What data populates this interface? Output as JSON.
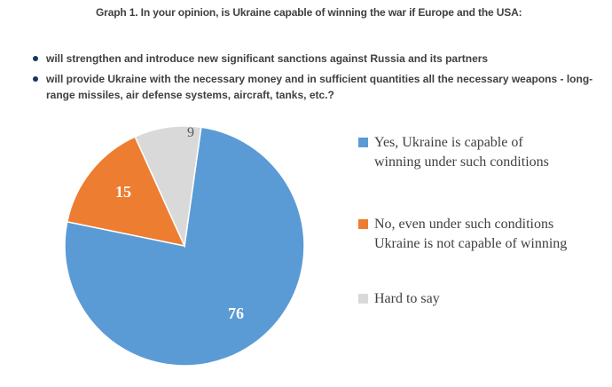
{
  "title": "Graph 1. In your opinion, is Ukraine capable of winning the war if Europe and the USA:",
  "bullets": [
    "will strengthen and introduce new significant sanctions against Russia and its partners",
    "will provide Ukraine with the necessary money and in sufficient quantities all the necessary weapons - long-range missiles, air defense systems, aircraft, tanks, etc.?"
  ],
  "chart_data": {
    "type": "pie",
    "title": "Graph 1. In your opinion, is Ukraine capable of winning the war if Europe and the USA:",
    "categories": [
      "Yes, Ukraine is capable of winning under such conditions",
      "No, even under such conditions Ukraine is not capable of winning",
      "Hard to say"
    ],
    "values": [
      76,
      15,
      9
    ],
    "colors": [
      "#5B9BD5",
      "#ED7D31",
      "#D9D9D9"
    ],
    "label_colors": [
      "#FFFFFF",
      "#FFFFFF",
      "#595959"
    ],
    "rotation_deg": 8,
    "direction": "clockwise",
    "legend_position": "right"
  }
}
